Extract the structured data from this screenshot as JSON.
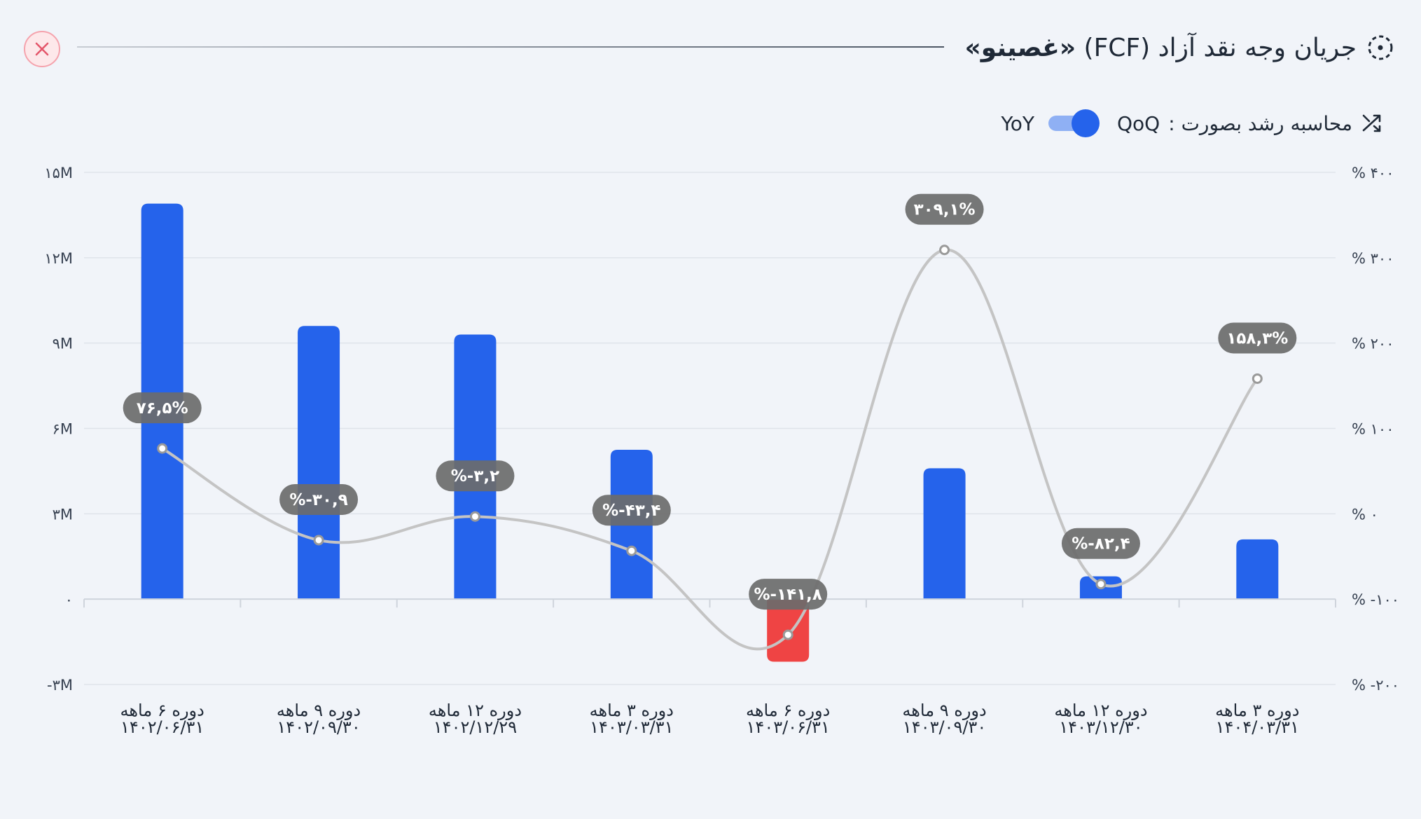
{
  "header": {
    "title": "جریان وجه نقد آزاد (FCF)",
    "company": "«غصینو»",
    "title_icon": "dashed-circle-icon",
    "close_icon": "close-icon"
  },
  "growth_toggle": {
    "label": "محاسبه رشد بصورت :",
    "option_left": "QoQ",
    "option_right": "YoY",
    "icon": "growth-arrows-icon"
  },
  "colors": {
    "positive_bar": "#2563eb",
    "negative_bar": "#ef4444",
    "growth_line": "#c4c4c4",
    "bubble": "#6b6b6b"
  },
  "chart_data": {
    "type": "bar",
    "title": "جریان وجه نقد آزاد (FCF)",
    "categories": [
      [
        "دوره ۶ ماهه",
        "۱۴۰۲/۰۶/۳۱"
      ],
      [
        "دوره ۹ ماهه",
        "۱۴۰۲/۰۹/۳۰"
      ],
      [
        "دوره ۱۲ ماهه",
        "۱۴۰۲/۱۲/۲۹"
      ],
      [
        "دوره ۳ ماهه",
        "۱۴۰۳/۰۳/۳۱"
      ],
      [
        "دوره ۶ ماهه",
        "۱۴۰۳/۰۶/۳۱"
      ],
      [
        "دوره ۹ ماهه",
        "۱۴۰۳/۰۹/۳۰"
      ],
      [
        "دوره ۱۲ ماهه",
        "۱۴۰۳/۱۲/۳۰"
      ],
      [
        "دوره ۳ ماهه",
        "۱۴۰۴/۰۳/۳۱"
      ]
    ],
    "series": [
      {
        "name": "FCF",
        "axis": "left",
        "values": [
          13900000,
          9600000,
          9300000,
          5250000,
          -2200000,
          4600000,
          800000,
          2100000
        ]
      },
      {
        "name": "growth",
        "axis": "right",
        "kind": "line",
        "values": [
          76.5,
          -30.9,
          -3.2,
          -43.4,
          -141.8,
          309.1,
          -82.4,
          158.3
        ],
        "labels": [
          "۷۶,۵%",
          "%-۳۰,۹",
          "%-۳,۲",
          "%-۴۳,۴",
          "%-۱۴۱,۸",
          "۳۰۹,۱%",
          "%-۸۲,۴",
          "۱۵۸,۳%"
        ]
      }
    ],
    "y_left": {
      "range": [
        -3000000,
        15000000
      ],
      "ticks": [
        -3000000,
        0,
        3000000,
        6000000,
        9000000,
        12000000,
        15000000
      ],
      "tick_labels": [
        "-۳M",
        "۰",
        "۳M",
        "۶M",
        "۹M",
        "۱۲M",
        "۱۵M"
      ]
    },
    "y_right": {
      "range": [
        -200,
        400
      ],
      "ticks": [
        -200,
        -100,
        0,
        100,
        200,
        300,
        400
      ],
      "tick_labels": [
        "% -۲۰۰",
        "% -۱۰۰",
        "% ۰",
        "% ۱۰۰",
        "% ۲۰۰",
        "% ۳۰۰",
        "% ۴۰۰"
      ]
    },
    "grid": true
  }
}
